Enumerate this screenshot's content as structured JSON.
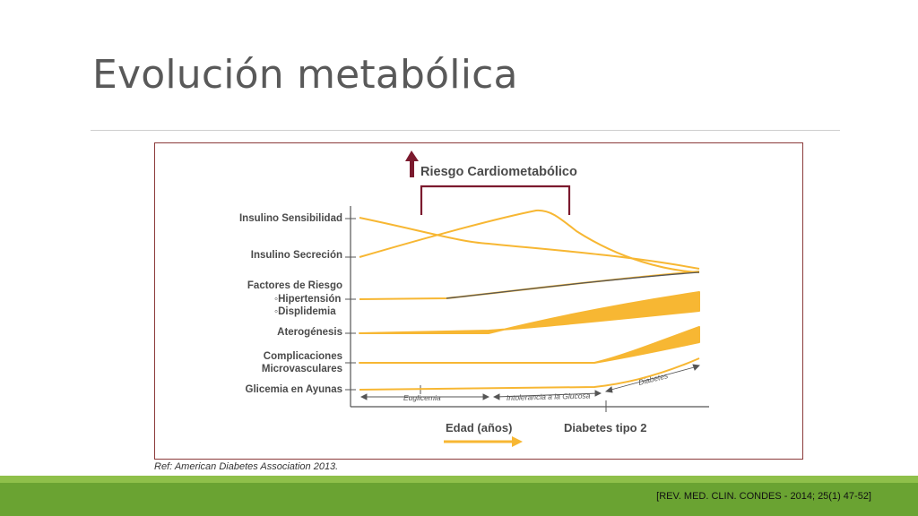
{
  "slide": {
    "title": "Evolución metabólica",
    "caption": "Ref: American Diabetes Association 2013.",
    "footer_reference": "[REV. MED. CLIN. CONDES - 2014; 25(1) 47-52]"
  },
  "diagram": {
    "header": "Riesgo Cardiometabólico",
    "row_labels": {
      "insulino_sensibilidad": "Insulino Sensibilidad",
      "insulino_secrecion": "Insulino Secreción",
      "factores_riesgo": "Factores de Riesgo",
      "hipertension": "◦Hipertensión",
      "displidemia": "◦Displidemia",
      "aterogenesis": "Aterogénesis",
      "complicaciones_1": "Complicaciones",
      "complicaciones_2": "Microvasculares",
      "glicemia": "Glicemia en Ayunas"
    },
    "phase_labels": {
      "euglicemia": "Euglicemia",
      "intolerancia": "Intolerancia a la Glucosa",
      "diabetes": "Diabetes"
    },
    "x_axis_label": "Edad (años)",
    "event_label": "Diabetes tipo 2",
    "colors": {
      "curve": "#f7b733",
      "band": "#f7b733",
      "risk_bracket": "#7b1a2e",
      "axis": "#555555",
      "dark_line": "#555555"
    }
  }
}
